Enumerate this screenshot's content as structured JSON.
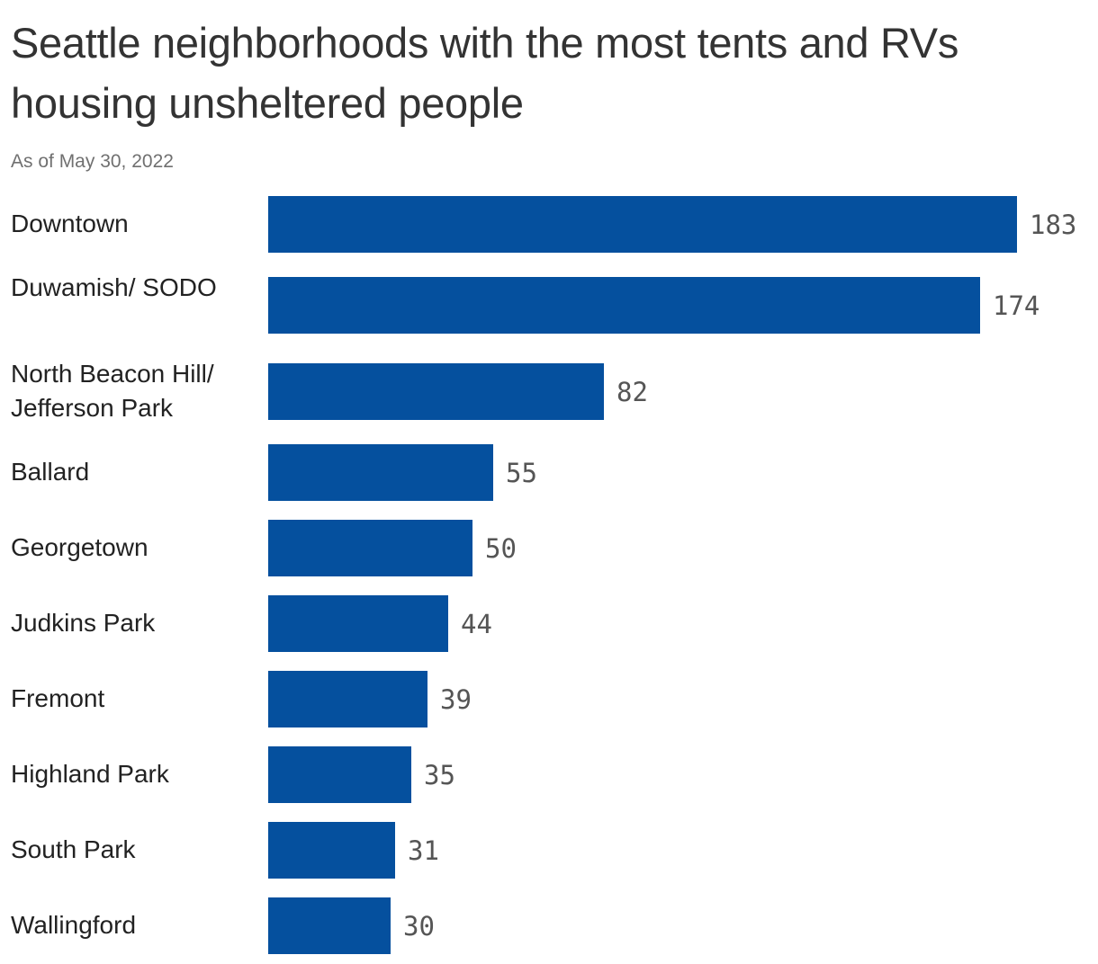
{
  "chart_data": {
    "type": "bar",
    "orientation": "horizontal",
    "title": "Seattle neighborhoods with the most tents and RVs housing unsheltered people",
    "subtitle": "As of May 30, 2022",
    "xlabel": "",
    "ylabel": "",
    "grid": false,
    "legend": "none",
    "bar_color": "#05509e",
    "categories": [
      "Downtown",
      "Duwamish/ SODO",
      "North Beacon Hill/ Jefferson Park",
      "Ballard",
      "Georgetown",
      "Judkins Park",
      "Fremont",
      "Highland Park",
      "South Park",
      "Wallingford"
    ],
    "values": [
      183,
      174,
      82,
      55,
      50,
      44,
      39,
      35,
      31,
      30
    ],
    "xlim": [
      0,
      183
    ]
  }
}
